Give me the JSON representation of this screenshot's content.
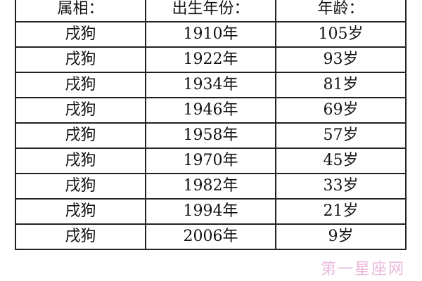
{
  "headers": [
    "属相：",
    "出生年份：",
    "年龄："
  ],
  "rows": [
    [
      "戌狗",
      "1910年",
      "105岁"
    ],
    [
      "戌狗",
      "1922年",
      "93岁"
    ],
    [
      "戌狗",
      "1934年",
      "81岁"
    ],
    [
      "戌狗",
      "1946年",
      "69岁"
    ],
    [
      "戌狗",
      "1958年",
      "57岁"
    ],
    [
      "戌狗",
      "1970年",
      "45岁"
    ],
    [
      "戌狗",
      "1982年",
      "33岁"
    ],
    [
      "戌狗",
      "1994年",
      "21岁"
    ],
    [
      "戌狗",
      "2006年",
      "9岁"
    ]
  ],
  "watermark": "第一星座网"
}
